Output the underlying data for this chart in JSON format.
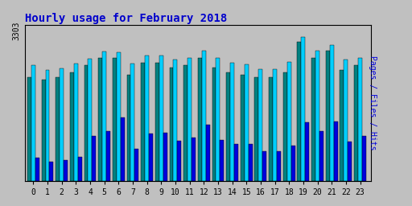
{
  "title": "Hourly usage for February 2018",
  "hours": [
    0,
    1,
    2,
    3,
    4,
    5,
    6,
    7,
    8,
    9,
    10,
    11,
    12,
    13,
    14,
    15,
    16,
    17,
    18,
    19,
    20,
    21,
    22,
    23
  ],
  "pages": [
    2200,
    2150,
    2200,
    2300,
    2450,
    2600,
    2600,
    2250,
    2500,
    2500,
    2400,
    2450,
    2600,
    2400,
    2300,
    2250,
    2200,
    2200,
    2300,
    2950,
    2600,
    2750,
    2350,
    2450
  ],
  "files": [
    2450,
    2350,
    2380,
    2480,
    2580,
    2730,
    2720,
    2480,
    2650,
    2650,
    2560,
    2600,
    2760,
    2600,
    2500,
    2460,
    2360,
    2360,
    2510,
    3050,
    2750,
    2870,
    2560,
    2610
  ],
  "hits": [
    500,
    420,
    440,
    520,
    950,
    1050,
    1350,
    680,
    1000,
    1020,
    850,
    920,
    1200,
    870,
    780,
    780,
    640,
    640,
    760,
    1250,
    1050,
    1260,
    840,
    960
  ],
  "color_pages": "#008080",
  "color_files": "#00cfff",
  "color_hits": "#0000dd",
  "bg_color": "#c0c0c0",
  "title_color": "#0000cc",
  "ylim": [
    0,
    3303
  ],
  "bar_width": 0.28,
  "title_fontsize": 10
}
